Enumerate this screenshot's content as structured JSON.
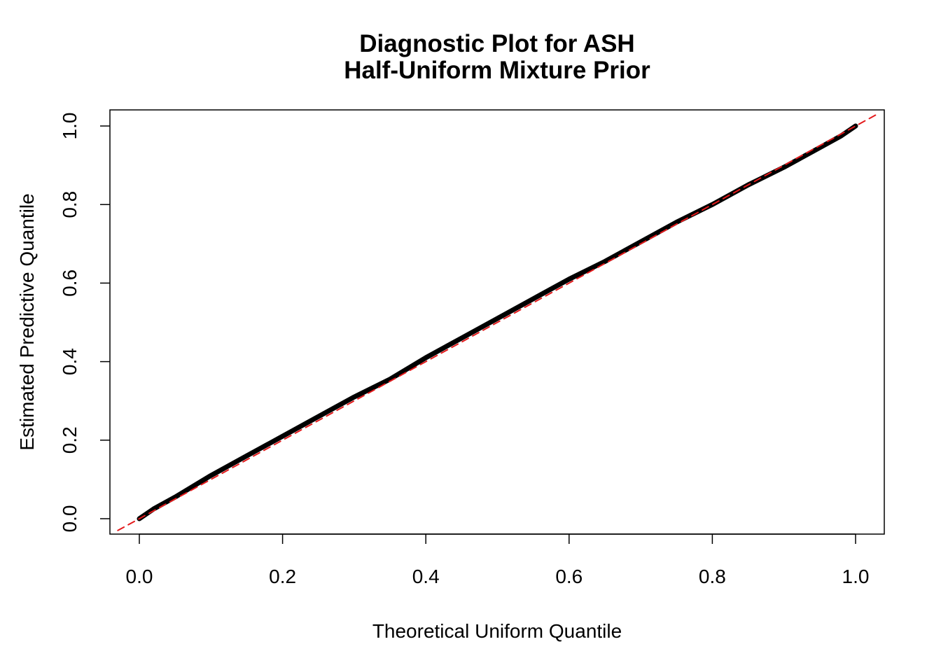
{
  "chart_data": {
    "type": "line",
    "title": "Diagnostic Plot for ASH",
    "subtitle": "Half-Uniform Mixture Prior",
    "xlabel": "Theoretical Uniform Quantile",
    "ylabel": "Estimated Predictive Quantile",
    "xlim": [
      0,
      1
    ],
    "ylim": [
      0,
      1
    ],
    "x_ticks": [
      "0.0",
      "0.2",
      "0.4",
      "0.6",
      "0.8",
      "1.0"
    ],
    "y_ticks": [
      "0.0",
      "0.2",
      "0.4",
      "0.6",
      "0.8",
      "1.0"
    ],
    "grid": false,
    "legend": "none",
    "series": [
      {
        "color": "#000000",
        "style": "solid-thick",
        "x": [
          0.0,
          0.02,
          0.05,
          0.1,
          0.15,
          0.2,
          0.25,
          0.3,
          0.35,
          0.4,
          0.45,
          0.5,
          0.55,
          0.6,
          0.65,
          0.7,
          0.75,
          0.8,
          0.85,
          0.9,
          0.95,
          0.98,
          1.0
        ],
        "y": [
          0.0,
          0.025,
          0.055,
          0.11,
          0.16,
          0.21,
          0.26,
          0.31,
          0.355,
          0.41,
          0.46,
          0.51,
          0.56,
          0.61,
          0.655,
          0.705,
          0.755,
          0.8,
          0.85,
          0.895,
          0.945,
          0.975,
          1.0
        ]
      },
      {
        "color": "#e31a1c",
        "style": "dashed",
        "x": [
          -0.03,
          1.03
        ],
        "y": [
          -0.03,
          1.03
        ]
      }
    ]
  }
}
